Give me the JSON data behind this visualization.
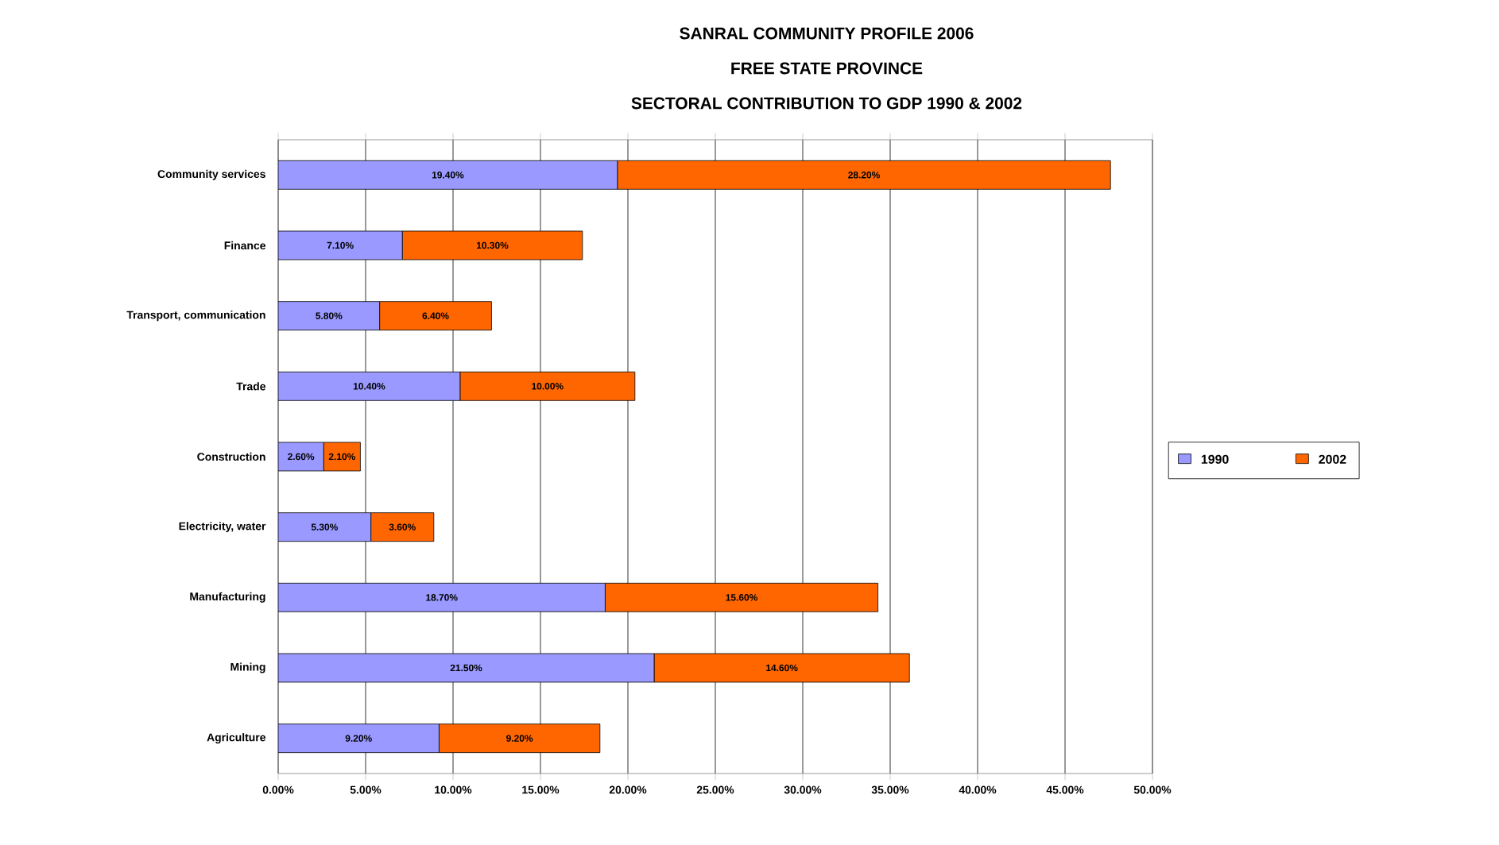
{
  "chart_data": {
    "type": "bar",
    "orientation": "horizontal",
    "stacked": true,
    "title": "SANRAL COMMUNITY PROFILE 2006",
    "subtitle": "FREE STATE PROVINCE",
    "annotations": [
      "SECTORAL CONTRIBUTION TO GDP 1990 & 2002"
    ],
    "categories": [
      "Community services",
      "Finance",
      "Transport, communication",
      "Trade",
      "Construction",
      "Electricity, water",
      "Manufacturing",
      "Mining",
      "Agriculture"
    ],
    "series": [
      {
        "name": "1990",
        "color": "#9999ff",
        "values": [
          19.4,
          7.1,
          5.8,
          10.4,
          2.6,
          5.3,
          18.7,
          21.5,
          9.2
        ],
        "value_labels": [
          "19.40%",
          "7.10%",
          "5.80%",
          "10.40%",
          "2.60%",
          "5.30%",
          "18.70%",
          "21.50%",
          "9.20%"
        ]
      },
      {
        "name": "2002",
        "color": "#ff6600",
        "values": [
          28.2,
          10.3,
          6.4,
          10.0,
          2.1,
          3.6,
          15.6,
          14.6,
          9.2
        ],
        "value_labels": [
          "28.20%",
          "10.30%",
          "6.40%",
          "10.00%",
          "2.10%",
          "3.60%",
          "15.60%",
          "14.60%",
          "9.20%"
        ]
      }
    ],
    "xlim": [
      0,
      50
    ],
    "xticks": [
      {
        "value": 0,
        "label": "0.00%"
      },
      {
        "value": 5,
        "label": "5.00%"
      },
      {
        "value": 10,
        "label": "10.00%"
      },
      {
        "value": 15,
        "label": "15.00%"
      },
      {
        "value": 20,
        "label": "20.00%"
      },
      {
        "value": 25,
        "label": "25.00%"
      },
      {
        "value": 30,
        "label": "30.00%"
      },
      {
        "value": 35,
        "label": "35.00%"
      },
      {
        "value": 40,
        "label": "40.00%"
      },
      {
        "value": 45,
        "label": "45.00%"
      },
      {
        "value": 50,
        "label": "50.00%"
      }
    ],
    "grid": "x",
    "legend": "right"
  }
}
